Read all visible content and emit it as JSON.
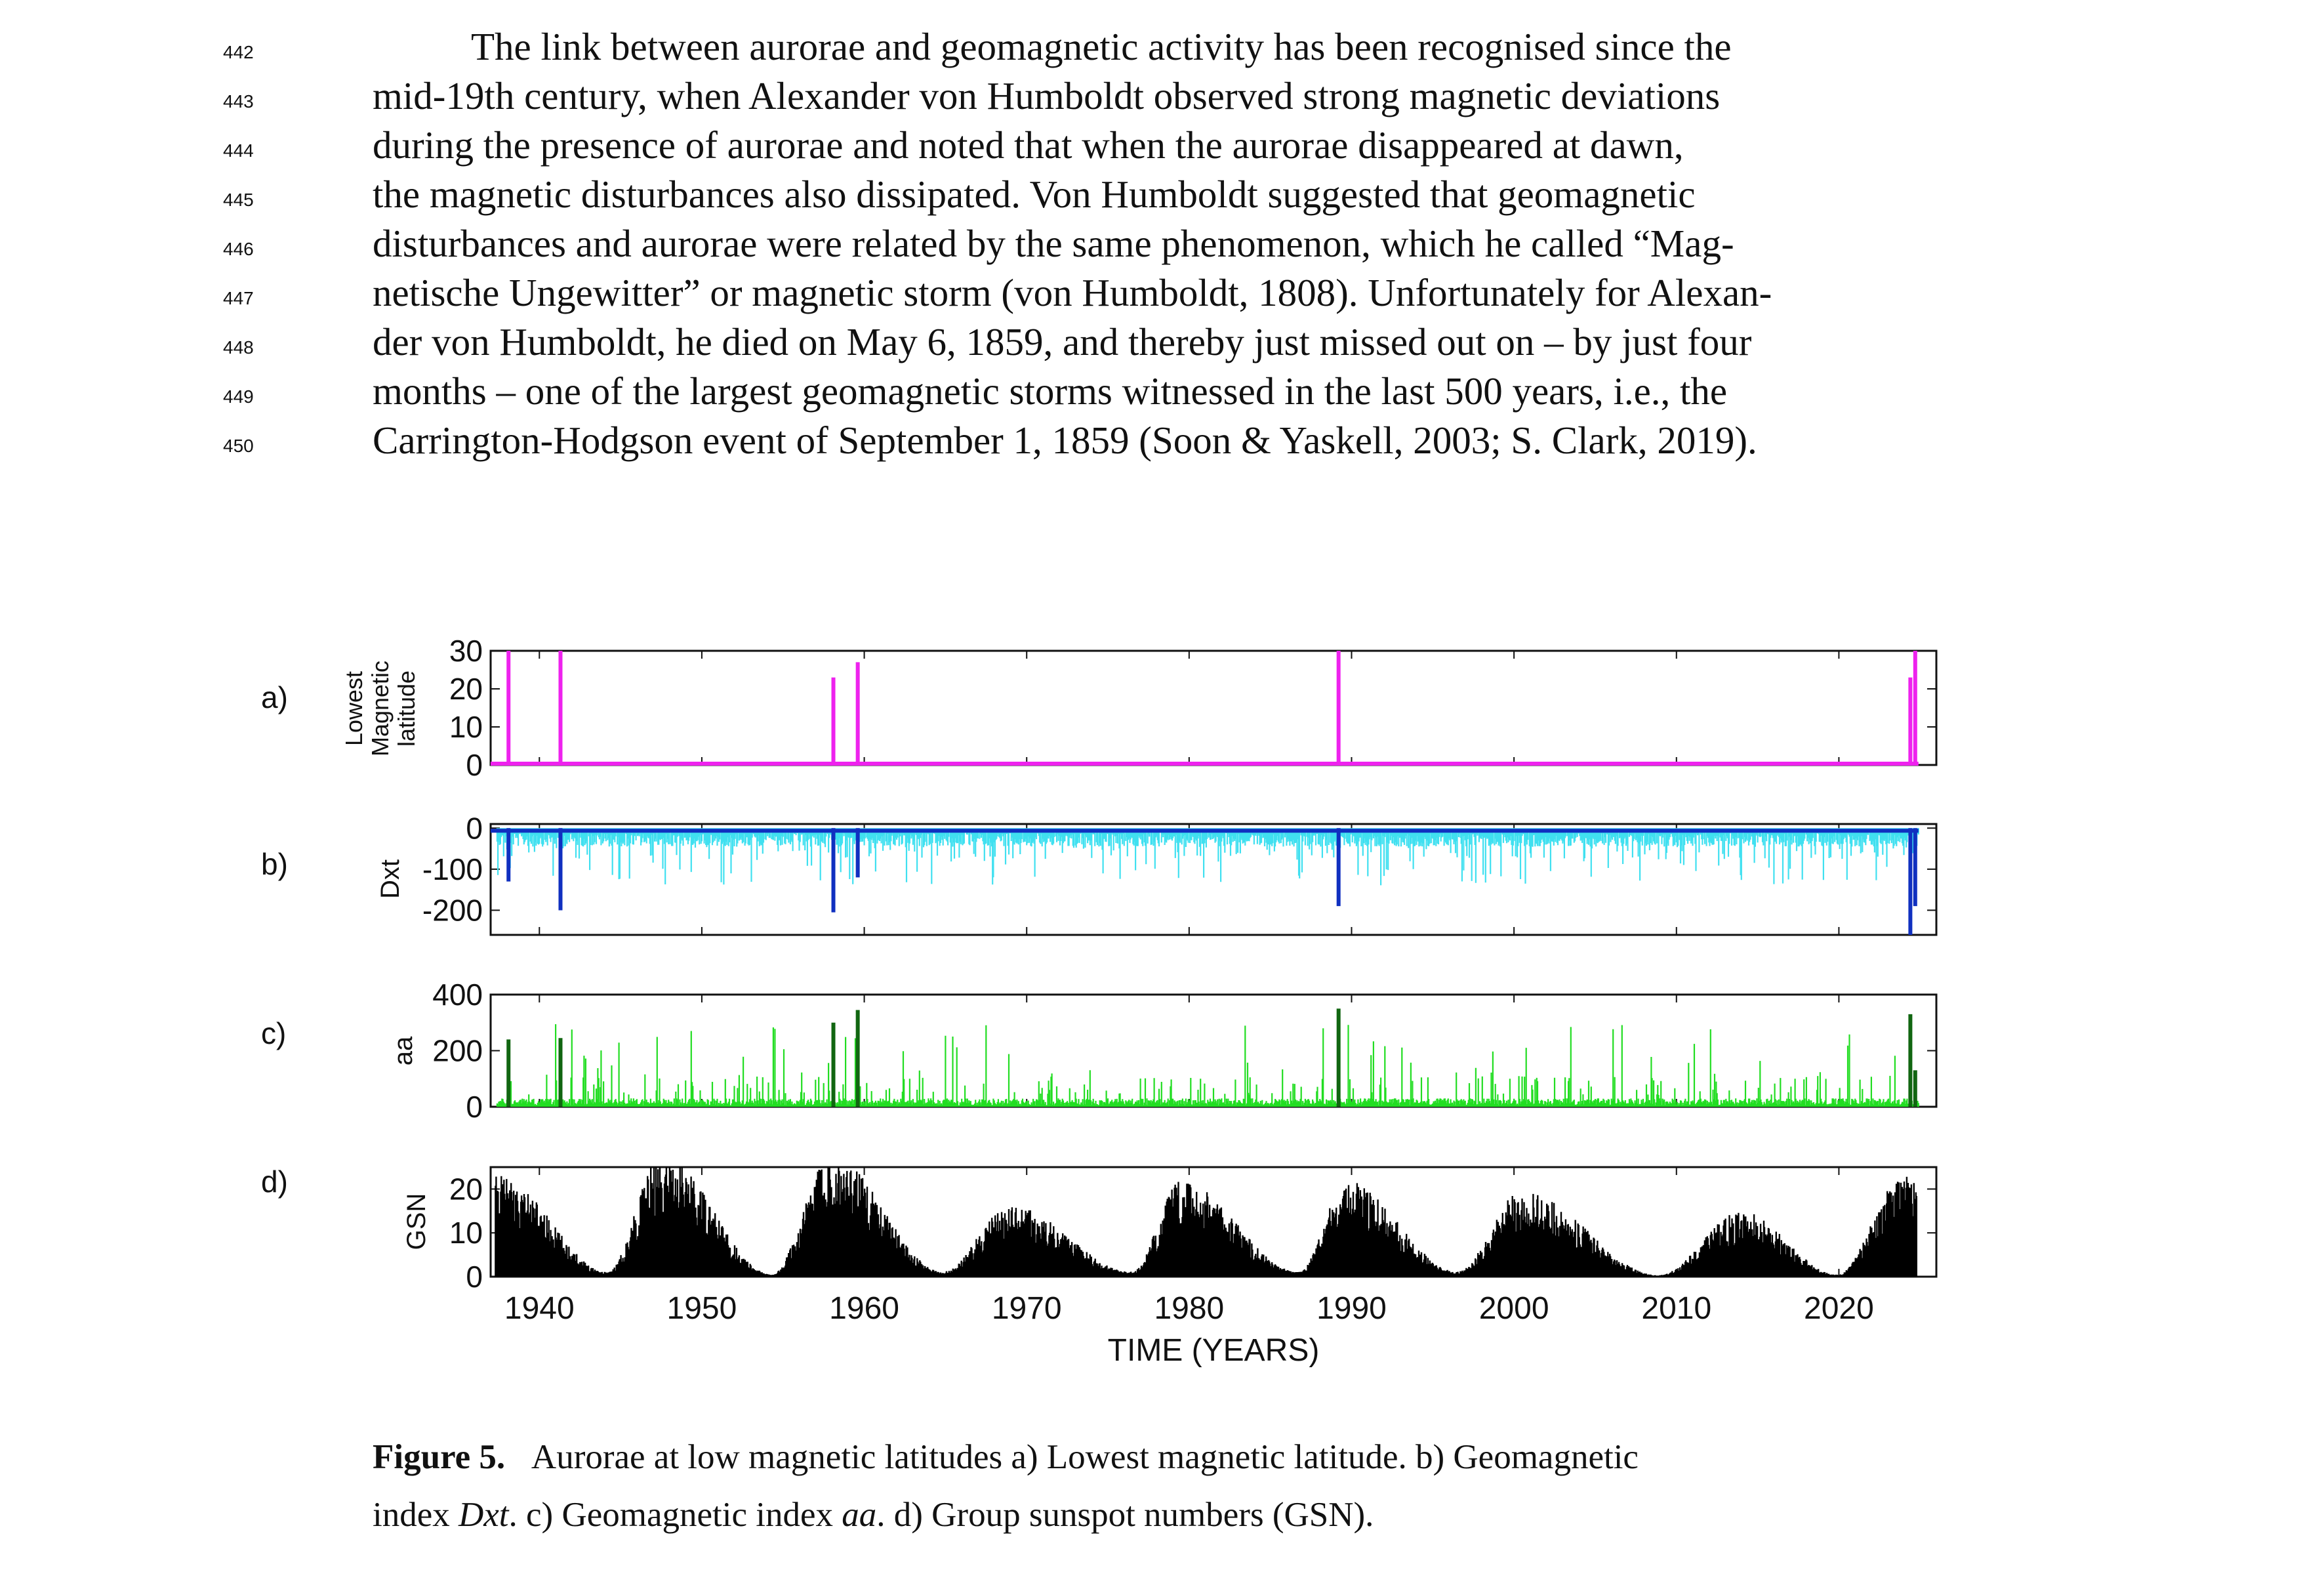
{
  "paragraph": {
    "lines": [
      {
        "num": "442",
        "text": "The link between aurorae and geomagnetic activity has been recognised since the"
      },
      {
        "num": "443",
        "text": "mid-19th century, when Alexander von Humboldt observed strong magnetic deviations"
      },
      {
        "num": "444",
        "text": "during the presence of aurorae and noted that when the aurorae disappeared at dawn,"
      },
      {
        "num": "445",
        "text": "the magnetic disturbances also dissipated. Von Humboldt suggested that geomagnetic"
      },
      {
        "num": "446",
        "text": "disturbances and aurorae were related by the same phenomenon, which he called “Mag-"
      },
      {
        "num": "447",
        "text": "netische Ungewitter” or magnetic storm (von Humboldt, 1808). Unfortunately for Alexan-"
      },
      {
        "num": "448",
        "text": "der von Humboldt, he died on May 6, 1859, and thereby just missed out on – by just four"
      },
      {
        "num": "449",
        "text": "months – one of the largest geomagnetic storms witnessed in the last 500 years, i.e., the"
      },
      {
        "num": "450",
        "text": "Carrington-Hodgson event of September 1, 1859 (Soon & Yaskell, 2003; S. Clark, 2019)."
      }
    ]
  },
  "panel_labels": [
    "a)",
    "b)",
    "c)",
    "d)"
  ],
  "caption": {
    "label": "Figure 5.",
    "line1": "Aurorae at low magnetic latitudes a) Lowest magnetic latitude. b) Geomagnetic",
    "line2_a": "index ",
    "line2_b": "Dxt",
    "line2_c": ". c) Geomagnetic index ",
    "line2_d": "aa",
    "line2_e": ". d) Group sunspot numbers (GSN)."
  },
  "colors": {
    "magenta": "#ee22ee",
    "cyan": "#40e0f0",
    "blue": "#1030c0",
    "green": "#22dd22",
    "darkgreen": "#116611",
    "black": "#000000"
  },
  "chart_data": [
    {
      "type": "bar",
      "panel": "a)",
      "ylabel_lines": [
        "Lowest",
        "Magnetic",
        "latitude"
      ],
      "ylim": [
        0,
        30
      ],
      "yticks": [
        0,
        10,
        20,
        30
      ],
      "events": [
        {
          "year": 1938.1,
          "value": 30
        },
        {
          "year": 1941.3,
          "value": 30
        },
        {
          "year": 1958.1,
          "value": 23
        },
        {
          "year": 1959.6,
          "value": 27
        },
        {
          "year": 1989.2,
          "value": 30
        },
        {
          "year": 2024.4,
          "value": 23
        },
        {
          "year": 2024.7,
          "value": 30
        }
      ]
    },
    {
      "type": "bar",
      "panel": "b)",
      "ylabel": "Dxt",
      "ylim": [
        -260,
        10
      ],
      "yticks": [
        0,
        -100,
        -200
      ],
      "ytick_labels": [
        "0",
        "-100",
        "-200"
      ],
      "storms": [
        {
          "year": 1938.1,
          "value": -130
        },
        {
          "year": 1941.3,
          "value": -200
        },
        {
          "year": 1958.1,
          "value": -205
        },
        {
          "year": 1959.6,
          "value": -120
        },
        {
          "year": 1989.2,
          "value": -190
        },
        {
          "year": 2024.4,
          "value": -260
        },
        {
          "year": 2024.7,
          "value": -190
        }
      ]
    },
    {
      "type": "bar",
      "panel": "c)",
      "ylabel": "aa",
      "ylim": [
        0,
        400
      ],
      "yticks": [
        0,
        200,
        400
      ],
      "storms": [
        {
          "year": 1938.1,
          "value": 240
        },
        {
          "year": 1941.3,
          "value": 245
        },
        {
          "year": 1958.1,
          "value": 300
        },
        {
          "year": 1959.6,
          "value": 345
        },
        {
          "year": 1989.2,
          "value": 350
        },
        {
          "year": 2024.4,
          "value": 330
        },
        {
          "year": 2024.7,
          "value": 130
        }
      ]
    },
    {
      "type": "area",
      "panel": "d)",
      "ylabel": "GSN",
      "ylim": [
        0,
        25
      ],
      "yticks": [
        0,
        10,
        20
      ],
      "cycle_peaks": [
        {
          "year": 1937.5,
          "value": 20
        },
        {
          "year": 1947.5,
          "value": 24
        },
        {
          "year": 1958.0,
          "value": 24
        },
        {
          "year": 1969.0,
          "value": 14
        },
        {
          "year": 1979.5,
          "value": 19
        },
        {
          "year": 1989.7,
          "value": 19
        },
        {
          "year": 2000.5,
          "value": 17
        },
        {
          "year": 2014.0,
          "value": 13
        },
        {
          "year": 2024.0,
          "value": 20
        }
      ],
      "cycle_minima": [
        {
          "year": 1944.2,
          "value": 1
        },
        {
          "year": 1954.3,
          "value": 0.5
        },
        {
          "year": 1964.8,
          "value": 1
        },
        {
          "year": 1976.5,
          "value": 1
        },
        {
          "year": 1986.7,
          "value": 1
        },
        {
          "year": 1996.5,
          "value": 1
        },
        {
          "year": 2008.9,
          "value": 0.3
        },
        {
          "year": 2019.9,
          "value": 0.4
        }
      ]
    }
  ],
  "x_axis": {
    "xlim": [
      1937,
      2026
    ],
    "ticks": [
      1940,
      1950,
      1960,
      1970,
      1980,
      1990,
      2000,
      2010,
      2020
    ],
    "label": "TIME (YEARS)"
  }
}
